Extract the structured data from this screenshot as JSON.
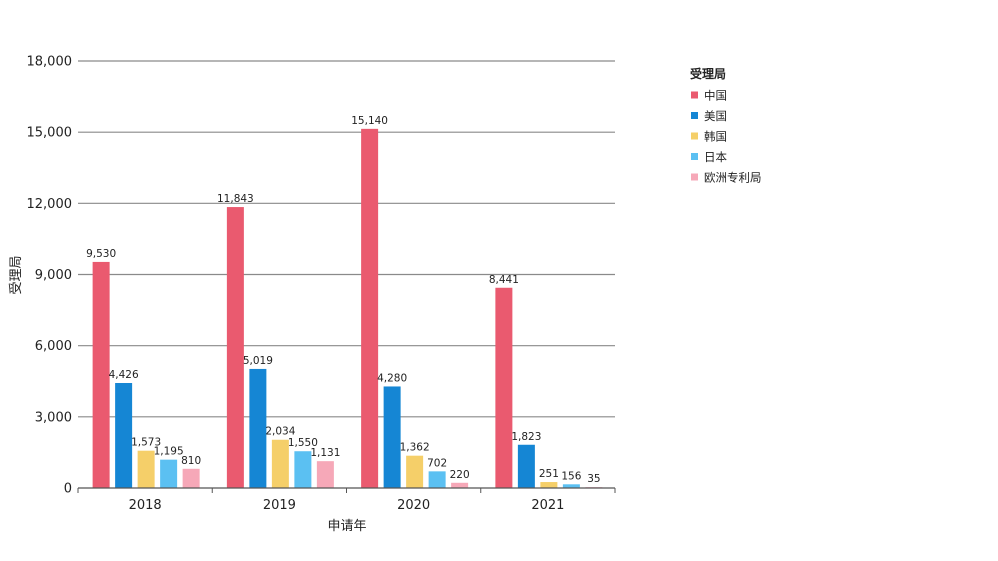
{
  "chart_data": {
    "type": "bar",
    "categories": [
      "2018",
      "2019",
      "2020",
      "2021"
    ],
    "series": [
      {
        "name": "中国",
        "color": "#ea5a6f",
        "values": [
          9530,
          11843,
          15140,
          8441
        ],
        "labels": [
          "9,530",
          "11,843",
          "15,140",
          "8,441"
        ]
      },
      {
        "name": "美国",
        "color": "#1586d4",
        "values": [
          4426,
          5019,
          4280,
          1823
        ],
        "labels": [
          "4,426",
          "5,019",
          "4,280",
          "1,823"
        ]
      },
      {
        "name": "韩国",
        "color": "#f5cf69",
        "values": [
          1573,
          2034,
          1362,
          251
        ],
        "labels": [
          "1,573",
          "2,034",
          "1,362",
          "251"
        ]
      },
      {
        "name": "日本",
        "color": "#5bc0f2",
        "values": [
          1195,
          1550,
          702,
          156
        ],
        "labels": [
          "1,195",
          "1,550",
          "702",
          "156"
        ]
      },
      {
        "name": "欧洲专利局",
        "color": "#f6a8b8",
        "values": [
          810,
          1131,
          220,
          35
        ],
        "labels": [
          "810",
          "1,131",
          "220",
          "35"
        ]
      }
    ],
    "xlabel": "申请年",
    "ylabel": "受理局",
    "ylim": [
      0,
      18000
    ],
    "yticks": [
      0,
      3000,
      6000,
      9000,
      12000,
      15000,
      18000
    ],
    "ytick_labels": [
      "0",
      "3,000",
      "6,000",
      "9,000",
      "12,000",
      "15,000",
      "18,000"
    ],
    "grid": true,
    "legend": {
      "title": "受理局",
      "position": "right"
    }
  }
}
